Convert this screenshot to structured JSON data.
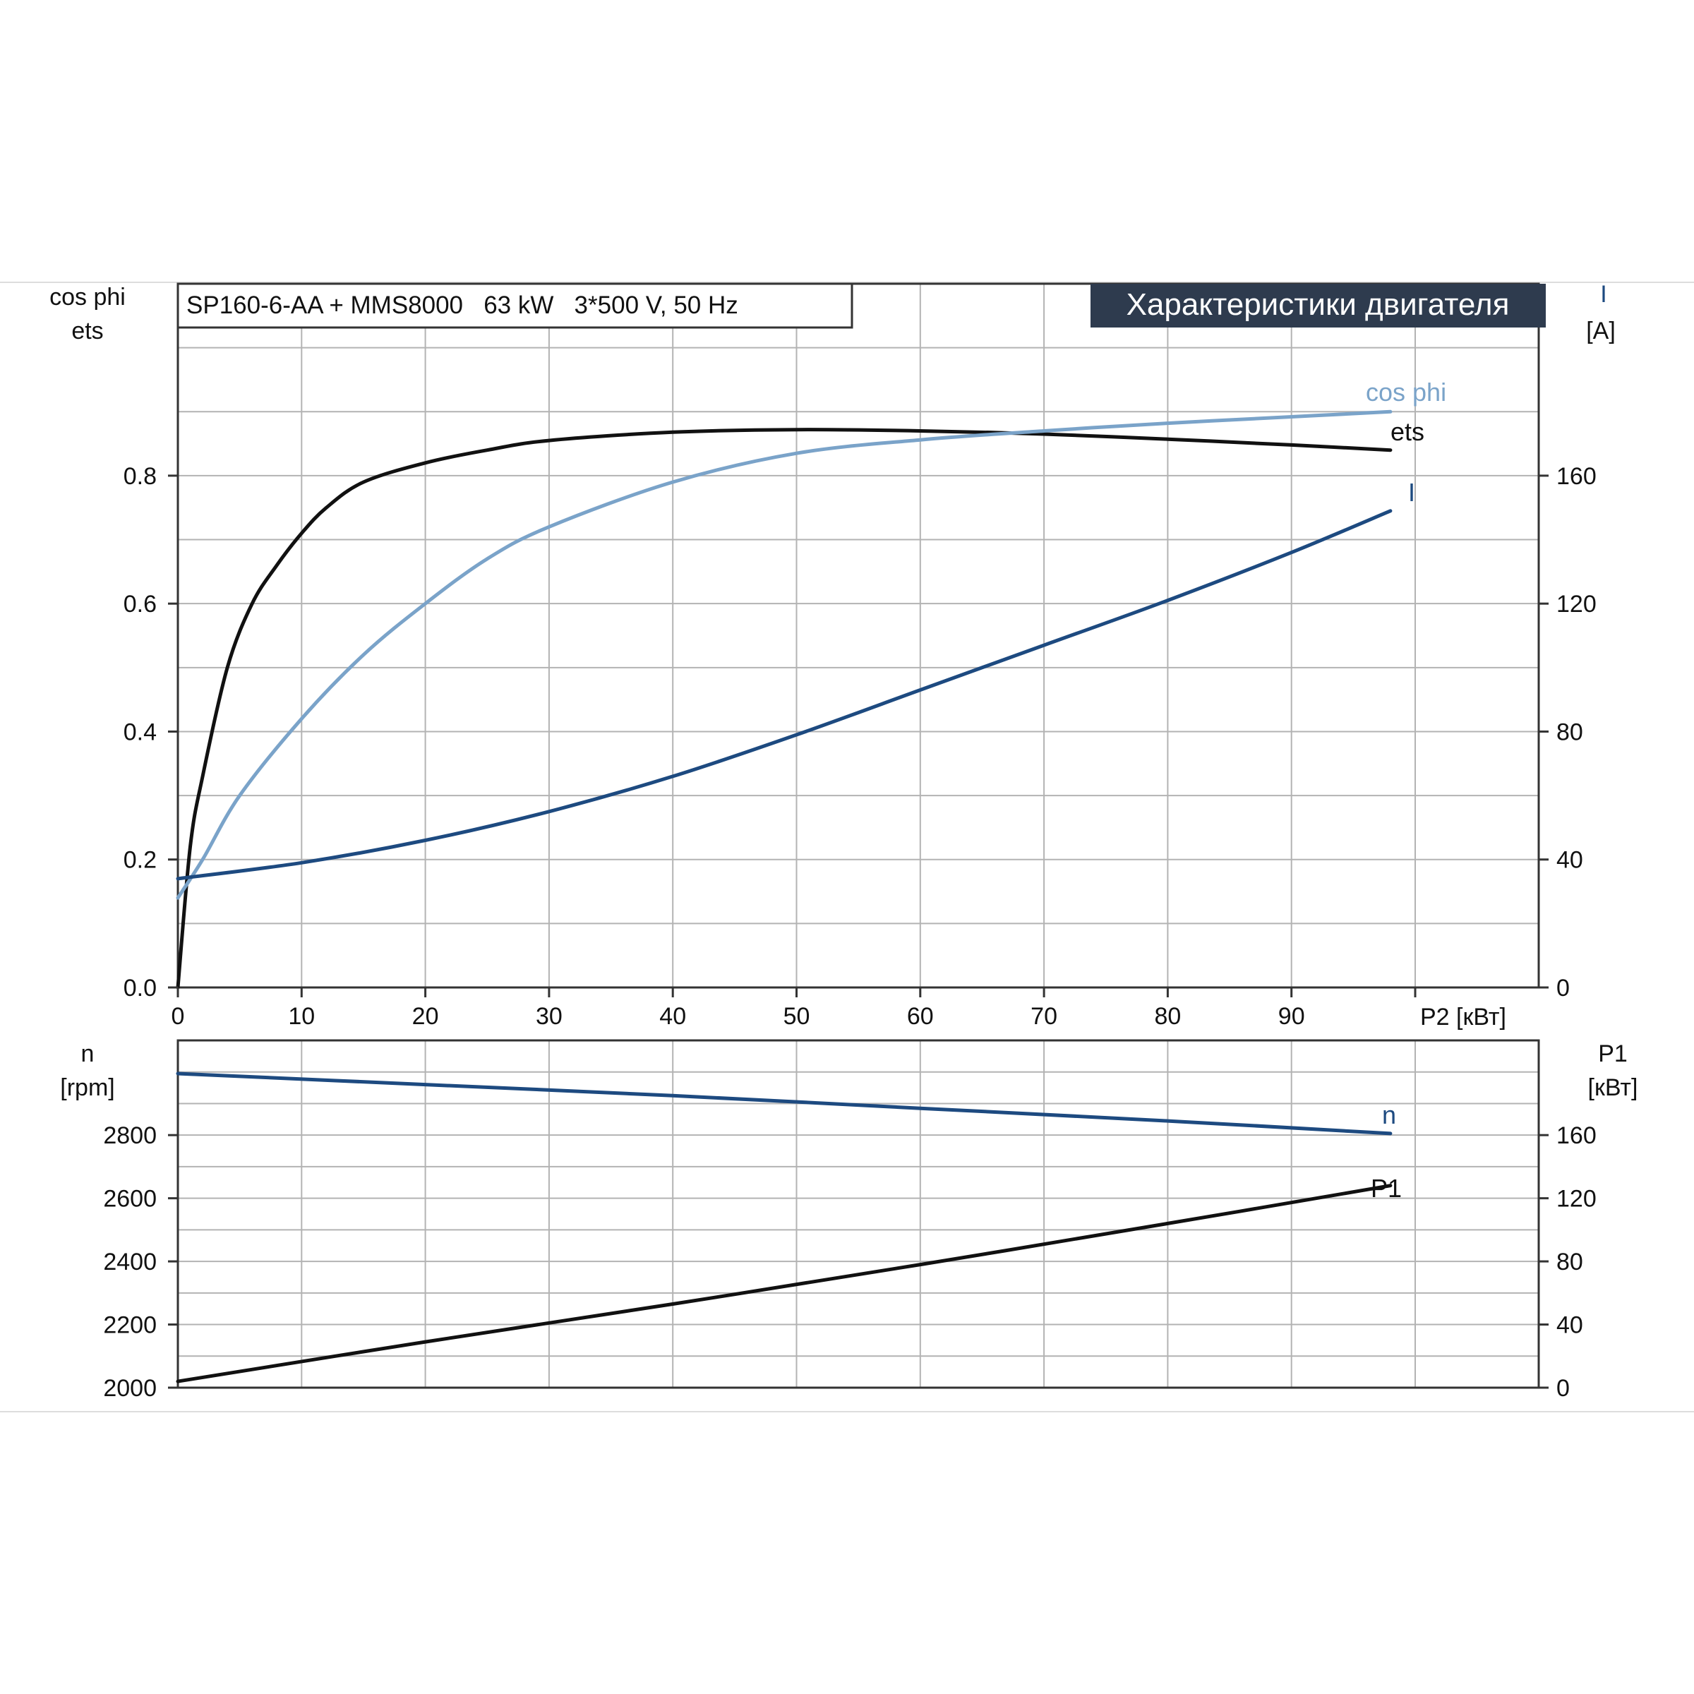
{
  "header": {
    "model_label": "SP160-6-AA + MMS8000   63 kW   3*500 V, 50 Hz",
    "title_badge": "Характеристики двигателя",
    "badge_color": "#2e3b4e"
  },
  "colors": {
    "ets": "#111111",
    "cos_phi": "#7aa3c9",
    "I": "#1d4a80",
    "n": "#1d4a80",
    "P1": "#111111"
  },
  "chart_data": [
    {
      "type": "line",
      "panel": "upper",
      "xlabel": "P2 [кВт]",
      "xlim": [
        0,
        110
      ],
      "xticks": [
        0,
        10,
        20,
        30,
        40,
        50,
        60,
        70,
        80,
        90
      ],
      "ylabel_left": [
        "cos phi",
        "ets"
      ],
      "ylim_left": [
        0,
        1.1
      ],
      "yticks_left": [
        "0.0",
        "0.2",
        "0.4",
        "0.6",
        "0.8"
      ],
      "ylabel_right": [
        "I",
        "[A]"
      ],
      "ylim_right": [
        0,
        220
      ],
      "yticks_right": [
        "0",
        "40",
        "80",
        "120",
        "160"
      ],
      "grid": true,
      "series": [
        {
          "key": "ets",
          "name": "ets",
          "axis": "left",
          "x": [
            0,
            1,
            2,
            4,
            6,
            8,
            10,
            12,
            15,
            20,
            25,
            30,
            40,
            50,
            60,
            70,
            80,
            90,
            98
          ],
          "y": [
            0,
            0.22,
            0.33,
            0.5,
            0.6,
            0.66,
            0.71,
            0.75,
            0.79,
            0.82,
            0.84,
            0.855,
            0.868,
            0.872,
            0.87,
            0.865,
            0.857,
            0.848,
            0.84
          ]
        },
        {
          "key": "cos_phi",
          "name": "cos phi",
          "axis": "left",
          "x": [
            0,
            2,
            5,
            10,
            15,
            20,
            25,
            30,
            40,
            50,
            60,
            70,
            80,
            90,
            98
          ],
          "y": [
            0.14,
            0.2,
            0.3,
            0.42,
            0.52,
            0.6,
            0.67,
            0.72,
            0.79,
            0.835,
            0.856,
            0.87,
            0.882,
            0.892,
            0.9
          ]
        },
        {
          "key": "I",
          "name": "I",
          "axis": "right",
          "x": [
            0,
            10,
            20,
            30,
            40,
            50,
            60,
            70,
            80,
            90,
            98
          ],
          "y": [
            34,
            39,
            46,
            55,
            66,
            79,
            93,
            107,
            121,
            136,
            149
          ]
        }
      ]
    },
    {
      "type": "line",
      "panel": "lower",
      "xlim": [
        0,
        110
      ],
      "ylabel_left": [
        "n",
        "[rpm]"
      ],
      "ylim_left": [
        2000,
        3100
      ],
      "yticks_left": [
        "2000",
        "2200",
        "2400",
        "2600",
        "2800"
      ],
      "ylabel_right": [
        "P1",
        "[кВт]"
      ],
      "ylim_right": [
        0,
        220
      ],
      "yticks_right": [
        "0",
        "40",
        "80",
        "120",
        "160"
      ],
      "grid": true,
      "series": [
        {
          "key": "n",
          "name": "n",
          "axis": "left",
          "x": [
            0,
            20,
            40,
            60,
            80,
            98
          ],
          "y": [
            2995,
            2960,
            2925,
            2885,
            2845,
            2805
          ]
        },
        {
          "key": "P1",
          "name": "P1",
          "axis": "right",
          "x": [
            0,
            20,
            40,
            60,
            80,
            98
          ],
          "y": [
            4,
            29,
            53,
            78,
            104,
            128
          ]
        }
      ]
    }
  ]
}
